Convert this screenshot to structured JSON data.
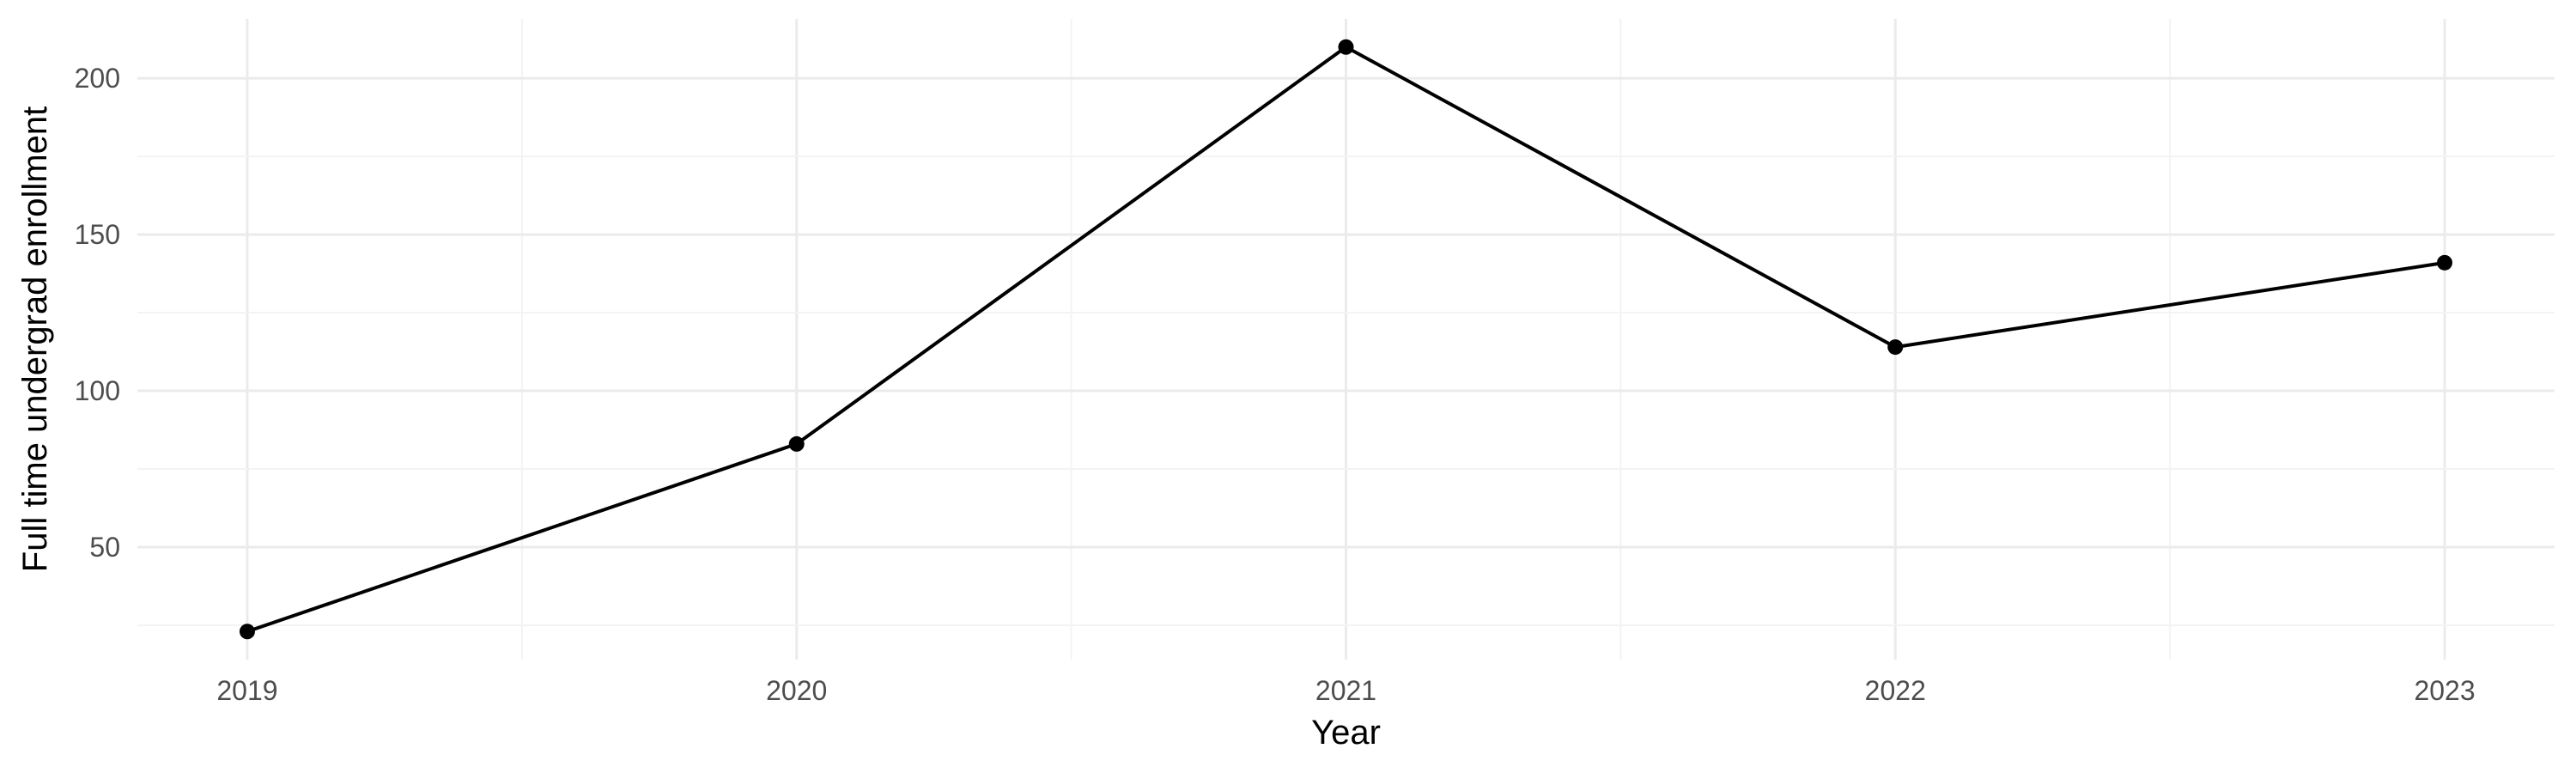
{
  "chart_data": {
    "type": "line",
    "title": "",
    "xlabel": "Year",
    "ylabel": "Full time undergrad enrollment",
    "x": [
      2019,
      2020,
      2021,
      2022,
      2023
    ],
    "series": [
      {
        "values": [
          23,
          83,
          210,
          114,
          141
        ]
      }
    ],
    "x_ticks": [
      "2019",
      "2020",
      "2021",
      "2022",
      "2023"
    ],
    "y_ticks": [
      "50",
      "100",
      "150",
      "200"
    ],
    "xlim": [
      2018.8,
      2023.2
    ],
    "ylim": [
      14,
      219
    ],
    "grid": true,
    "legend": "none",
    "colors": {
      "line": "#000000",
      "grid": "#ebebeb"
    }
  }
}
